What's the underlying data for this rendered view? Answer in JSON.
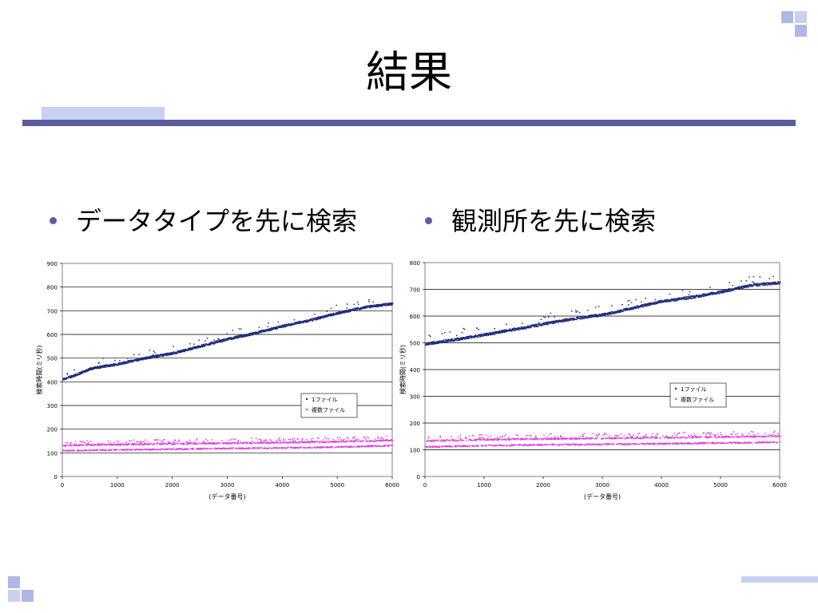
{
  "slide": {
    "title": "結果",
    "bullets": [
      "データタイプを先に検索",
      "観測所を先に検索"
    ]
  },
  "colors": {
    "accent_dark": "#5a5e9e",
    "accent_light": "#c9d0f2",
    "series_single": "#1f2a78",
    "series_multi": "#e040e0"
  },
  "chart_data": [
    {
      "type": "scatter",
      "title": "",
      "xlabel": "(データ番号)",
      "ylabel": "検索時間(ミリ秒)",
      "xlim": [
        0,
        6000
      ],
      "ylim": [
        0,
        900
      ],
      "xticks": [
        0,
        1000,
        2000,
        3000,
        4000,
        5000,
        6000
      ],
      "yticks": [
        0,
        100,
        200,
        300,
        400,
        500,
        600,
        700,
        800,
        900
      ],
      "grid": "horizontal",
      "legend_position": "right-lower",
      "series": [
        {
          "name": "1ファイル",
          "color": "#1f2a78",
          "points": [
            [
              0,
              410
            ],
            [
              250,
              430
            ],
            [
              500,
              455
            ],
            [
              1000,
              475
            ],
            [
              1500,
              500
            ],
            [
              2000,
              520
            ],
            [
              2500,
              550
            ],
            [
              3000,
              580
            ],
            [
              3500,
              605
            ],
            [
              4000,
              635
            ],
            [
              4500,
              660
            ],
            [
              5000,
              690
            ],
            [
              5500,
              715
            ],
            [
              6000,
              730
            ]
          ]
        },
        {
          "name": "複数ファイル",
          "color": "#e040e0",
          "points": [
            [
              0,
              108
            ],
            [
              1000,
              112
            ],
            [
              2000,
              115
            ],
            [
              3000,
              118
            ],
            [
              4000,
              120
            ],
            [
              5000,
              124
            ],
            [
              6000,
              130
            ]
          ]
        }
      ]
    },
    {
      "type": "scatter",
      "title": "",
      "xlabel": "(データ番号)",
      "ylabel": "検索時間(ミリ秒)",
      "xlim": [
        0,
        6000
      ],
      "ylim": [
        0,
        800
      ],
      "xticks": [
        0,
        1000,
        2000,
        3000,
        4000,
        5000,
        6000
      ],
      "yticks": [
        0,
        100,
        200,
        300,
        400,
        500,
        600,
        700,
        800
      ],
      "grid": "horizontal",
      "legend_position": "right-middle",
      "series": [
        {
          "name": "1ファイル",
          "color": "#1f2a78",
          "points": [
            [
              0,
              495
            ],
            [
              500,
              512
            ],
            [
              1000,
              530
            ],
            [
              1500,
              550
            ],
            [
              2000,
              570
            ],
            [
              2500,
              590
            ],
            [
              3000,
              605
            ],
            [
              3500,
              630
            ],
            [
              4000,
              655
            ],
            [
              4500,
              670
            ],
            [
              5000,
              690
            ],
            [
              5500,
              715
            ],
            [
              6000,
              725
            ]
          ]
        },
        {
          "name": "複数ファイル",
          "color": "#e040e0",
          "points": [
            [
              0,
              110
            ],
            [
              1000,
              115
            ],
            [
              2000,
              118
            ],
            [
              3000,
              120
            ],
            [
              4000,
              122
            ],
            [
              5000,
              125
            ],
            [
              6000,
              128
            ]
          ]
        }
      ]
    }
  ]
}
